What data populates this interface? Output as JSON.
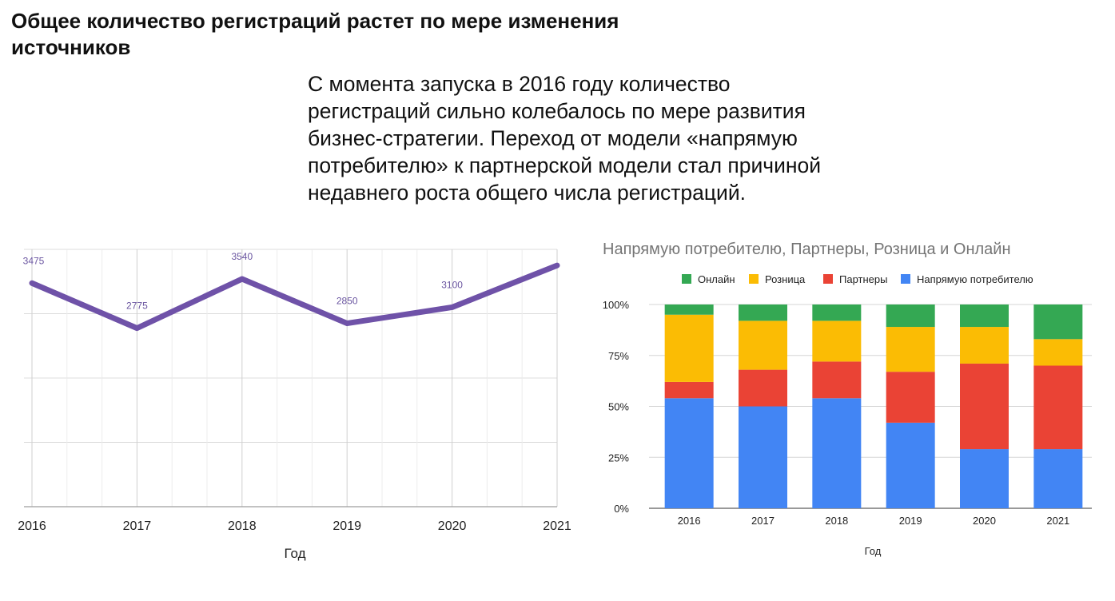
{
  "heading": "Общее количество регистраций растет по мере изменения источников",
  "description": "С момента запуска в 2016 году количество регистраций сильно колебалось по мере развития бизнес-стратегии. Переход от модели «напрямую потребителю» к партнерской модели стал причиной недавнего роста общего числа регистраций.",
  "colors": {
    "line": "#6f52a8",
    "label": "#6a55a0",
    "grid": "#dcdcdc",
    "online": "#34a853",
    "retail": "#fbbc04",
    "partners": "#ea4335",
    "direct": "#4285f4"
  },
  "chart_data": [
    {
      "type": "line",
      "title": "",
      "xlabel": "Год",
      "ylabel": "",
      "x": [
        "2016",
        "2017",
        "2018",
        "2019",
        "2020",
        "2021"
      ],
      "series": [
        {
          "values": [
            3475,
            2775,
            3540,
            2850,
            3100,
            3750
          ]
        }
      ],
      "data_labels": [
        "3475",
        "2775",
        "3540",
        "2850",
        "3100",
        ""
      ],
      "ylim": [
        0,
        4000
      ],
      "grid": true
    },
    {
      "type": "bar",
      "stacked": "percent",
      "title": "Напрямую потребителю, Партнеры, Розница и Онлайн",
      "xlabel": "Год",
      "ylabel": "",
      "categories": [
        "2016",
        "2017",
        "2018",
        "2019",
        "2020",
        "2021"
      ],
      "yticks": [
        "0%",
        "25%",
        "50%",
        "75%",
        "100%"
      ],
      "ylim": [
        0,
        100
      ],
      "legend_position": "top",
      "legend": [
        "Онлайн",
        "Розница",
        "Партнеры",
        "Напрямую потребителю"
      ],
      "series": [
        {
          "name": "Напрямую потребителю",
          "color_key": "direct",
          "values": [
            54,
            50,
            54,
            42,
            29,
            29
          ]
        },
        {
          "name": "Партнеры",
          "color_key": "partners",
          "values": [
            8,
            18,
            18,
            25,
            42,
            41
          ]
        },
        {
          "name": "Розница",
          "color_key": "retail",
          "values": [
            33,
            24,
            20,
            22,
            18,
            13
          ]
        },
        {
          "name": "Онлайн",
          "color_key": "online",
          "values": [
            5,
            8,
            8,
            11,
            11,
            17
          ]
        }
      ]
    }
  ]
}
